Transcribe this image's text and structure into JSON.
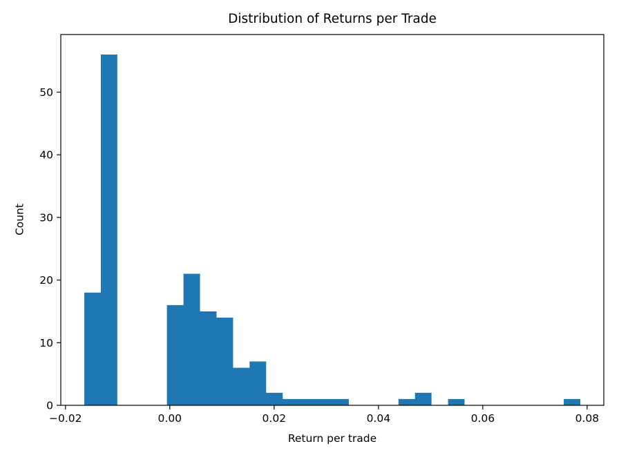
{
  "chart_data": {
    "type": "bar",
    "variant": "histogram",
    "title": "Distribution of Returns per Trade",
    "xlabel": "Return per trade",
    "ylabel": "Count",
    "bar_color": "#1f77b4",
    "background_color": "#ffffff",
    "axis_color": "#000000",
    "text_color": "#000000",
    "bin_start": -0.0164,
    "bin_width": 0.00317,
    "counts": [
      18,
      56,
      0,
      0,
      0,
      16,
      21,
      15,
      14,
      6,
      7,
      2,
      1,
      1,
      1,
      1,
      0,
      0,
      0,
      1,
      2,
      0,
      1,
      0,
      0,
      0,
      0,
      0,
      0,
      1
    ],
    "xlim": [
      -0.0209,
      0.0832
    ],
    "ylim": [
      0,
      59.2
    ],
    "xticks": [
      {
        "value": -0.02,
        "label": "−0.02"
      },
      {
        "value": 0.0,
        "label": "0.00"
      },
      {
        "value": 0.02,
        "label": "0.02"
      },
      {
        "value": 0.04,
        "label": "0.04"
      },
      {
        "value": 0.06,
        "label": "0.06"
      },
      {
        "value": 0.08,
        "label": "0.08"
      }
    ],
    "yticks": [
      {
        "value": 0,
        "label": "0"
      },
      {
        "value": 10,
        "label": "10"
      },
      {
        "value": 20,
        "label": "20"
      },
      {
        "value": 30,
        "label": "30"
      },
      {
        "value": 40,
        "label": "40"
      },
      {
        "value": 50,
        "label": "50"
      }
    ],
    "grid": false,
    "legend": null
  }
}
